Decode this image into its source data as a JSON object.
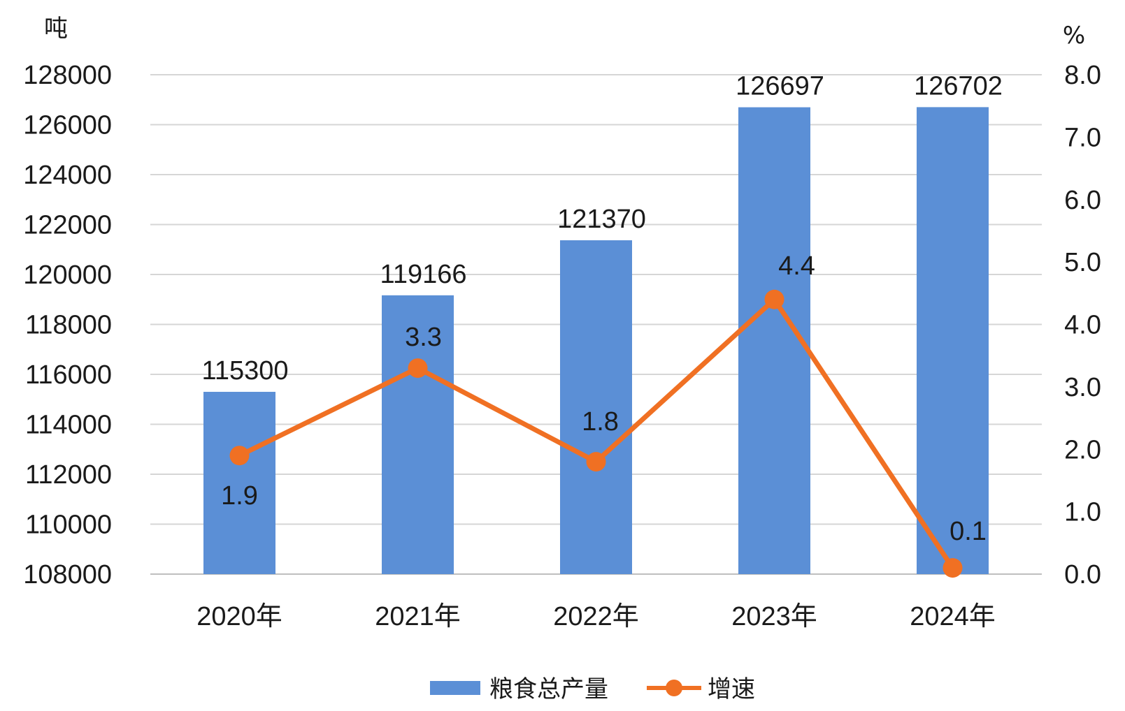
{
  "chart_data": {
    "type": "bar",
    "categories": [
      "2020年",
      "2021年",
      "2022年",
      "2023年",
      "2024年"
    ],
    "series": [
      {
        "name": "粮食总产量",
        "type": "bar",
        "axis": "left",
        "values": [
          115300,
          119166,
          121370,
          126697,
          126702
        ],
        "color": "#5B8FD6"
      },
      {
        "name": "增速",
        "type": "line",
        "axis": "right",
        "values": [
          1.9,
          3.3,
          1.8,
          4.4,
          0.1
        ],
        "color": "#F07023"
      }
    ],
    "y_left": {
      "unit": "吨",
      "min": 108000,
      "max": 128000,
      "ticks": [
        "108000",
        "110000",
        "112000",
        "114000",
        "116000",
        "118000",
        "120000",
        "122000",
        "124000",
        "126000",
        "128000"
      ]
    },
    "y_right": {
      "unit": "%",
      "min": 0,
      "max": 8,
      "ticks": [
        "0.0",
        "1.0",
        "2.0",
        "3.0",
        "4.0",
        "5.0",
        "6.0",
        "7.0",
        "8.0"
      ]
    },
    "bar_labels": [
      "115300",
      "119166",
      "121370",
      "126697",
      "126702"
    ],
    "line_labels": [
      "1.9",
      "3.3",
      "1.8",
      "4.4",
      "0.1"
    ],
    "grid": true,
    "legend": {
      "position": "bottom",
      "items": [
        "粮食总产量",
        "增速"
      ]
    }
  }
}
